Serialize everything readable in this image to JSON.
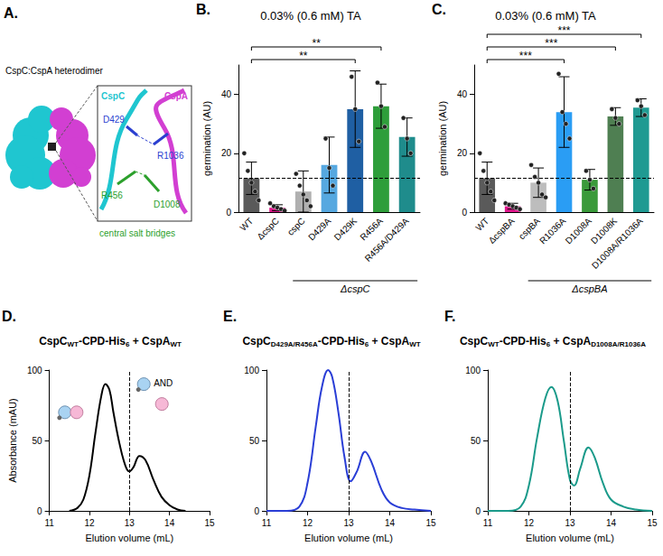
{
  "diagram": {
    "panel": "A.",
    "title": "CspC:CspA heterodimer",
    "subunits": [
      {
        "name": "CspC",
        "color": "#1fc6d0"
      },
      {
        "name": "CspA",
        "color": "#d23fd2"
      }
    ],
    "residues": [
      {
        "name": "D429",
        "color": "#2b3fd0"
      },
      {
        "name": "R1036",
        "color": "#2b3fd0"
      },
      {
        "name": "R456",
        "color": "#2ca02c"
      },
      {
        "name": "D1008",
        "color": "#2ca02c"
      }
    ],
    "caption": "central salt bridges"
  },
  "chart_data": [
    {
      "panel": "B.",
      "type": "bar",
      "title": "0.03% (0.6 mM) TA",
      "y_label": "germination (AU)",
      "categories": [
        "WT",
        "ΔcspC",
        "cspC",
        "D429A",
        "D429K",
        "R456A",
        "R456A/D429A"
      ],
      "values": [
        11.5,
        1.5,
        7,
        16,
        35,
        36,
        25.5
      ],
      "errors": [
        5.5,
        1,
        7,
        9.5,
        13,
        7.5,
        6.5
      ],
      "points": [
        [
          20,
          14,
          10,
          7,
          4
        ],
        [
          3,
          2,
          1.5,
          1,
          0.5
        ],
        [
          13,
          9,
          6,
          4,
          2
        ],
        [
          25,
          15,
          9
        ],
        [
          46,
          35,
          24
        ],
        [
          44,
          36,
          29
        ],
        [
          32,
          25,
          20
        ]
      ],
      "colors": [
        "#5a5a5a",
        "#e0168c",
        "#b0b0b0",
        "#56a8e0",
        "#1f5fa3",
        "#2e9e3a",
        "#1f8c8c"
      ],
      "ylim": [
        0,
        50
      ],
      "yticks": [
        0,
        20,
        40
      ],
      "group": {
        "label": "ΔcspC",
        "from": "cspC",
        "to": "R456A/D429A"
      },
      "significance": [
        {
          "from": "WT",
          "to": "D429K",
          "label": "**"
        },
        {
          "from": "WT",
          "to": "R456A",
          "label": "**"
        }
      ],
      "grid": false
    },
    {
      "panel": "C.",
      "type": "bar",
      "title": "0.03% (0.6 mM) TA",
      "y_label": "germination (AU)",
      "categories": [
        "WT",
        "ΔcspBA",
        "cspBA",
        "R1036A",
        "D1008A",
        "D1008K",
        "D1008A/R1036A"
      ],
      "values": [
        11.5,
        2,
        10,
        34,
        11,
        32.5,
        35.5
      ],
      "errors": [
        5.5,
        1,
        5,
        12,
        3.5,
        3,
        3
      ],
      "points": [
        [
          20,
          14,
          10,
          7,
          4
        ],
        [
          3,
          2.5,
          2,
          1.5,
          1
        ],
        [
          16,
          12,
          10,
          6,
          5
        ],
        [
          47,
          34,
          30,
          25
        ],
        [
          14,
          11,
          8
        ],
        [
          35,
          32,
          30
        ],
        [
          38,
          36,
          33
        ]
      ],
      "colors": [
        "#5a5a5a",
        "#e0168c",
        "#bdbdbd",
        "#2a9df4",
        "#3a9a3a",
        "#4f7f52",
        "#1f9a92"
      ],
      "ylim": [
        0,
        50
      ],
      "yticks": [
        0,
        20,
        40
      ],
      "group": {
        "label": "ΔcspBA",
        "from": "cspBA",
        "to": "D1008A/R1036A"
      },
      "significance": [
        {
          "from": "WT",
          "to": "R1036A",
          "label": "***"
        },
        {
          "from": "WT",
          "to": "D1008K",
          "label": "***"
        },
        {
          "from": "WT",
          "to": "D1008A/R1036A",
          "label": "***"
        }
      ],
      "grid": false
    },
    {
      "panel": "D.",
      "type": "line",
      "title": [
        {
          "text": "CspC"
        },
        {
          "text": "WT",
          "sub": true
        },
        {
          "text": "-CPD-His"
        },
        {
          "text": "6",
          "sub": true
        },
        {
          "text": " + CspA"
        },
        {
          "text": "WT",
          "sub": true
        }
      ],
      "x_label": "Elution volume (mL)",
      "y_label": "Absorbance (mAU)",
      "x": [
        11.5,
        11.7,
        11.85,
        12.0,
        12.15,
        12.3,
        12.4,
        12.5,
        12.6,
        12.75,
        12.9,
        13.0,
        13.1,
        13.25,
        13.4,
        13.6,
        13.8,
        14.0,
        14.2,
        14.4
      ],
      "values": [
        0,
        2,
        8,
        25,
        55,
        82,
        90,
        86,
        70,
        48,
        32,
        28,
        31,
        39,
        36,
        22,
        10,
        4,
        1,
        0
      ],
      "color": "#000000",
      "xlim": [
        11,
        15
      ],
      "xticks": [
        11,
        12,
        13,
        14,
        15
      ],
      "ylim": [
        0,
        100
      ],
      "yticks": [
        0,
        50,
        100
      ],
      "reference_x": 13,
      "annotation": "AND"
    },
    {
      "panel": "E.",
      "type": "line",
      "title": [
        {
          "text": "CspC"
        },
        {
          "text": "D429A/R456A",
          "sub": true
        },
        {
          "text": "-CPD-His"
        },
        {
          "text": "6",
          "sub": true
        },
        {
          "text": " + CspA"
        },
        {
          "text": "WT",
          "sub": true
        }
      ],
      "x_label": "Elution volume (mL)",
      "x": [
        11.0,
        11.5,
        11.8,
        12.0,
        12.2,
        12.35,
        12.5,
        12.6,
        12.75,
        12.9,
        13.05,
        13.2,
        13.4,
        13.55,
        13.8,
        14.0,
        14.3,
        14.6,
        15.0
      ],
      "values": [
        0,
        0,
        3,
        20,
        60,
        88,
        100,
        95,
        70,
        38,
        21,
        28,
        42,
        35,
        15,
        6,
        2,
        1,
        0
      ],
      "color": "#2a3ed6",
      "xlim": [
        11,
        15
      ],
      "xticks": [
        11,
        12,
        13,
        14,
        15
      ],
      "ylim": [
        0,
        100
      ],
      "yticks": [
        0,
        50,
        100
      ],
      "reference_x": 13
    },
    {
      "panel": "F.",
      "type": "line",
      "title": [
        {
          "text": "CspC"
        },
        {
          "text": "WT",
          "sub": true
        },
        {
          "text": "-CPD-His"
        },
        {
          "text": "6",
          "sub": true
        },
        {
          "text": " + CspA"
        },
        {
          "text": "D1008A/R1036A",
          "sub": true
        }
      ],
      "x_label": "Elution volume (mL)",
      "x": [
        11.0,
        11.5,
        11.8,
        12.0,
        12.2,
        12.4,
        12.55,
        12.7,
        12.85,
        13.0,
        13.1,
        13.25,
        13.45,
        13.6,
        13.8,
        14.0,
        14.3,
        14.6,
        15.0
      ],
      "values": [
        0,
        0,
        3,
        18,
        52,
        80,
        88,
        78,
        50,
        22,
        18,
        30,
        45,
        38,
        20,
        8,
        3,
        1,
        0
      ],
      "color": "#1a9a8a",
      "xlim": [
        11,
        15
      ],
      "xticks": [
        11,
        12,
        13,
        14,
        15
      ],
      "ylim": [
        0,
        100
      ],
      "yticks": [
        0,
        50,
        100
      ],
      "reference_x": 13
    }
  ]
}
